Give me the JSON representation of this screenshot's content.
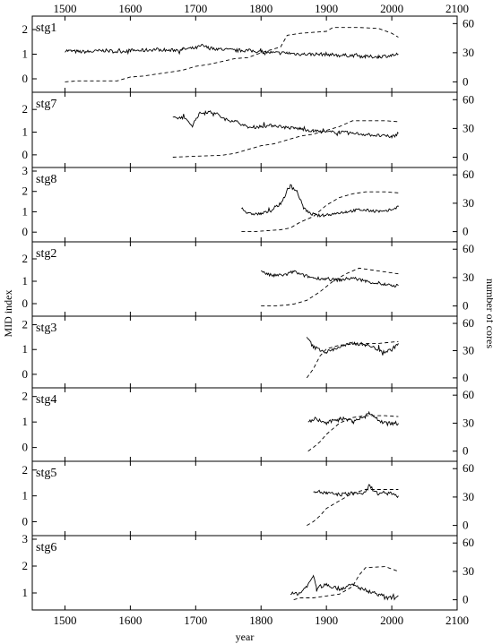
{
  "chart_data": {
    "type": "line",
    "xlabel": "year",
    "ylabel_left": "MID index",
    "ylabel_right": "number of cores",
    "x_ticks_top": [
      "1500",
      "1600",
      "1700",
      "1800",
      "1900",
      "2000",
      "2100"
    ],
    "x_ticks_bottom": [
      "1500",
      "1600",
      "1700",
      "1800",
      "1900",
      "2000",
      "2100"
    ],
    "xlim": [
      1450,
      2100
    ],
    "grid": false,
    "series_style": {
      "MID index": "solid black line",
      "number of cores": "dashed black line"
    },
    "panels": [
      {
        "label": "stg1",
        "left_ylim": [
          -0.4,
          2.4
        ],
        "left_ticks": [
          "0",
          "1",
          "2"
        ],
        "right_ylim": [
          -7,
          64
        ],
        "right_ticks": [
          "0",
          "30",
          "60"
        ],
        "mid_index": [
          [
            1500,
            1.15
          ],
          [
            1520,
            1.1
          ],
          [
            1540,
            1.1
          ],
          [
            1560,
            1.15
          ],
          [
            1580,
            1.1
          ],
          [
            1600,
            1.15
          ],
          [
            1620,
            1.15
          ],
          [
            1640,
            1.2
          ],
          [
            1660,
            1.15
          ],
          [
            1680,
            1.2
          ],
          [
            1700,
            1.25
          ],
          [
            1710,
            1.35
          ],
          [
            1720,
            1.25
          ],
          [
            1740,
            1.2
          ],
          [
            1760,
            1.15
          ],
          [
            1780,
            1.15
          ],
          [
            1800,
            1.1
          ],
          [
            1820,
            1.05
          ],
          [
            1840,
            1.05
          ],
          [
            1860,
            1.0
          ],
          [
            1880,
            1.0
          ],
          [
            1900,
            1.0
          ],
          [
            1920,
            0.95
          ],
          [
            1940,
            0.95
          ],
          [
            1960,
            0.9
          ],
          [
            1980,
            0.9
          ],
          [
            2000,
            0.95
          ],
          [
            2010,
            1.0
          ]
        ],
        "cores": [
          [
            1500,
            0
          ],
          [
            1520,
            1
          ],
          [
            1580,
            1
          ],
          [
            1600,
            5
          ],
          [
            1620,
            6
          ],
          [
            1640,
            8
          ],
          [
            1660,
            10
          ],
          [
            1680,
            12
          ],
          [
            1700,
            16
          ],
          [
            1720,
            18
          ],
          [
            1760,
            24
          ],
          [
            1780,
            25
          ],
          [
            1800,
            30
          ],
          [
            1830,
            36
          ],
          [
            1840,
            48
          ],
          [
            1860,
            50
          ],
          [
            1880,
            51
          ],
          [
            1900,
            52
          ],
          [
            1910,
            56
          ],
          [
            1950,
            56
          ],
          [
            1980,
            55
          ],
          [
            2000,
            50
          ],
          [
            2010,
            46
          ]
        ]
      },
      {
        "label": "stg7",
        "left_ylim": [
          -0.4,
          2.6
        ],
        "left_ticks": [
          "0",
          "1",
          "2"
        ],
        "right_ylim": [
          -7,
          64
        ],
        "right_ticks": [
          "0",
          "30",
          "60"
        ],
        "mid_index": [
          [
            1665,
            1.6
          ],
          [
            1680,
            1.65
          ],
          [
            1695,
            1.3
          ],
          [
            1705,
            1.8
          ],
          [
            1715,
            1.9
          ],
          [
            1730,
            1.85
          ],
          [
            1745,
            1.55
          ],
          [
            1760,
            1.5
          ],
          [
            1780,
            1.2
          ],
          [
            1800,
            1.25
          ],
          [
            1820,
            1.3
          ],
          [
            1840,
            1.2
          ],
          [
            1860,
            1.15
          ],
          [
            1880,
            1.05
          ],
          [
            1900,
            1.0
          ],
          [
            1920,
            1.0
          ],
          [
            1940,
            0.95
          ],
          [
            1960,
            0.9
          ],
          [
            1980,
            0.85
          ],
          [
            2000,
            0.8
          ],
          [
            2010,
            0.95
          ]
        ],
        "cores": [
          [
            1665,
            0
          ],
          [
            1700,
            1
          ],
          [
            1740,
            2
          ],
          [
            1760,
            4
          ],
          [
            1780,
            8
          ],
          [
            1800,
            12
          ],
          [
            1820,
            14
          ],
          [
            1840,
            18
          ],
          [
            1860,
            22
          ],
          [
            1880,
            24
          ],
          [
            1900,
            28
          ],
          [
            1920,
            32
          ],
          [
            1940,
            38
          ],
          [
            1960,
            38
          ],
          [
            1990,
            38
          ],
          [
            2010,
            37
          ]
        ]
      },
      {
        "label": "stg8",
        "left_ylim": [
          -0.3,
          3.0
        ],
        "left_ticks": [
          "0",
          "1",
          "2",
          "3"
        ],
        "right_ylim": [
          -7,
          64
        ],
        "right_ticks": [
          "0",
          "30",
          "60"
        ],
        "mid_index": [
          [
            1770,
            1.2
          ],
          [
            1780,
            0.9
          ],
          [
            1800,
            0.9
          ],
          [
            1815,
            1.05
          ],
          [
            1830,
            1.4
          ],
          [
            1845,
            2.3
          ],
          [
            1855,
            2.0
          ],
          [
            1865,
            1.2
          ],
          [
            1875,
            0.9
          ],
          [
            1890,
            0.8
          ],
          [
            1910,
            0.9
          ],
          [
            1930,
            1.0
          ],
          [
            1950,
            1.1
          ],
          [
            1970,
            1.05
          ],
          [
            1990,
            1.0
          ],
          [
            2010,
            1.25
          ]
        ],
        "cores": [
          [
            1770,
            0
          ],
          [
            1790,
            0
          ],
          [
            1810,
            1
          ],
          [
            1830,
            2
          ],
          [
            1845,
            4
          ],
          [
            1860,
            10
          ],
          [
            1880,
            16
          ],
          [
            1900,
            28
          ],
          [
            1920,
            36
          ],
          [
            1940,
            40
          ],
          [
            1960,
            42
          ],
          [
            1990,
            42
          ],
          [
            2010,
            41
          ]
        ]
      },
      {
        "label": "stg2",
        "left_ylim": [
          -0.4,
          2.6
        ],
        "left_ticks": [
          "0",
          "1",
          "2"
        ],
        "right_ylim": [
          -7,
          64
        ],
        "right_ticks": [
          "0",
          "30",
          "60"
        ],
        "mid_index": [
          [
            1800,
            1.5
          ],
          [
            1810,
            1.3
          ],
          [
            1820,
            1.25
          ],
          [
            1840,
            1.3
          ],
          [
            1850,
            1.45
          ],
          [
            1860,
            1.3
          ],
          [
            1880,
            1.15
          ],
          [
            1900,
            1.1
          ],
          [
            1920,
            1.05
          ],
          [
            1940,
            1.15
          ],
          [
            1960,
            1.0
          ],
          [
            1980,
            0.9
          ],
          [
            2000,
            0.8
          ],
          [
            2010,
            0.8
          ]
        ],
        "cores": [
          [
            1800,
            0
          ],
          [
            1820,
            0
          ],
          [
            1840,
            1
          ],
          [
            1850,
            2
          ],
          [
            1870,
            6
          ],
          [
            1890,
            15
          ],
          [
            1910,
            26
          ],
          [
            1930,
            34
          ],
          [
            1950,
            40
          ],
          [
            1970,
            38
          ],
          [
            1990,
            36
          ],
          [
            2010,
            34
          ]
        ]
      },
      {
        "label": "stg3",
        "left_ylim": [
          -0.4,
          2.2
        ],
        "left_ticks": [
          "0",
          "1",
          "2"
        ],
        "right_ylim": [
          -7,
          64
        ],
        "right_ticks": [
          "0",
          "30",
          "60"
        ],
        "mid_index": [
          [
            1870,
            1.5
          ],
          [
            1880,
            1.1
          ],
          [
            1900,
            0.9
          ],
          [
            1920,
            1.1
          ],
          [
            1940,
            1.25
          ],
          [
            1960,
            1.2
          ],
          [
            1980,
            1.0
          ],
          [
            1990,
            0.9
          ],
          [
            2000,
            1.0
          ],
          [
            2010,
            1.25
          ]
        ],
        "cores": [
          [
            1870,
            0
          ],
          [
            1880,
            10
          ],
          [
            1890,
            24
          ],
          [
            1900,
            32
          ],
          [
            1920,
            36
          ],
          [
            1950,
            38
          ],
          [
            1980,
            38
          ],
          [
            2010,
            40
          ]
        ]
      },
      {
        "label": "stg4",
        "left_ylim": [
          -0.4,
          2.2
        ],
        "left_ticks": [
          "0",
          "1",
          "2"
        ],
        "right_ylim": [
          -7,
          64
        ],
        "right_ticks": [
          "0",
          "30",
          "60"
        ],
        "mid_index": [
          [
            1872,
            1.0
          ],
          [
            1885,
            1.1
          ],
          [
            1900,
            0.95
          ],
          [
            1920,
            1.15
          ],
          [
            1940,
            1.05
          ],
          [
            1960,
            1.2
          ],
          [
            1965,
            1.4
          ],
          [
            1980,
            1.05
          ],
          [
            2000,
            0.95
          ],
          [
            2010,
            0.95
          ]
        ],
        "cores": [
          [
            1872,
            0
          ],
          [
            1880,
            4
          ],
          [
            1890,
            10
          ],
          [
            1900,
            18
          ],
          [
            1920,
            30
          ],
          [
            1940,
            36
          ],
          [
            1960,
            38
          ],
          [
            1990,
            38
          ],
          [
            2010,
            37
          ]
        ]
      },
      {
        "label": "stg5",
        "left_ylim": [
          -0.4,
          2.2
        ],
        "left_ticks": [
          "0",
          "1",
          "2"
        ],
        "right_ylim": [
          -7,
          64
        ],
        "right_ticks": [
          "0",
          "30",
          "60"
        ],
        "mid_index": [
          [
            1880,
            1.2
          ],
          [
            1900,
            1.1
          ],
          [
            1920,
            1.05
          ],
          [
            1940,
            1.1
          ],
          [
            1960,
            1.1
          ],
          [
            1965,
            1.4
          ],
          [
            1980,
            1.05
          ],
          [
            2000,
            1.1
          ],
          [
            2010,
            1.0
          ]
        ],
        "cores": [
          [
            1870,
            0
          ],
          [
            1880,
            4
          ],
          [
            1890,
            10
          ],
          [
            1900,
            18
          ],
          [
            1920,
            26
          ],
          [
            1940,
            34
          ],
          [
            1960,
            38
          ],
          [
            1990,
            38
          ],
          [
            2010,
            38
          ]
        ]
      },
      {
        "label": "stg6",
        "left_ylim": [
          0.5,
          3.0
        ],
        "left_ticks": [
          "1",
          "2",
          "3"
        ],
        "right_ylim": [
          -7,
          64
        ],
        "right_ticks": [
          "0",
          "30",
          "60"
        ],
        "mid_index": [
          [
            1845,
            0.95
          ],
          [
            1860,
            1.0
          ],
          [
            1875,
            1.4
          ],
          [
            1880,
            1.65
          ],
          [
            1885,
            1.2
          ],
          [
            1900,
            1.3
          ],
          [
            1920,
            1.15
          ],
          [
            1940,
            1.3
          ],
          [
            1960,
            1.1
          ],
          [
            1980,
            0.95
          ],
          [
            1995,
            0.8
          ],
          [
            2010,
            0.9
          ]
        ],
        "cores": [
          [
            1850,
            0
          ],
          [
            1860,
            2
          ],
          [
            1880,
            2
          ],
          [
            1900,
            4
          ],
          [
            1920,
            6
          ],
          [
            1940,
            14
          ],
          [
            1950,
            26
          ],
          [
            1960,
            34
          ],
          [
            1990,
            35
          ],
          [
            2010,
            30
          ]
        ]
      }
    ]
  }
}
